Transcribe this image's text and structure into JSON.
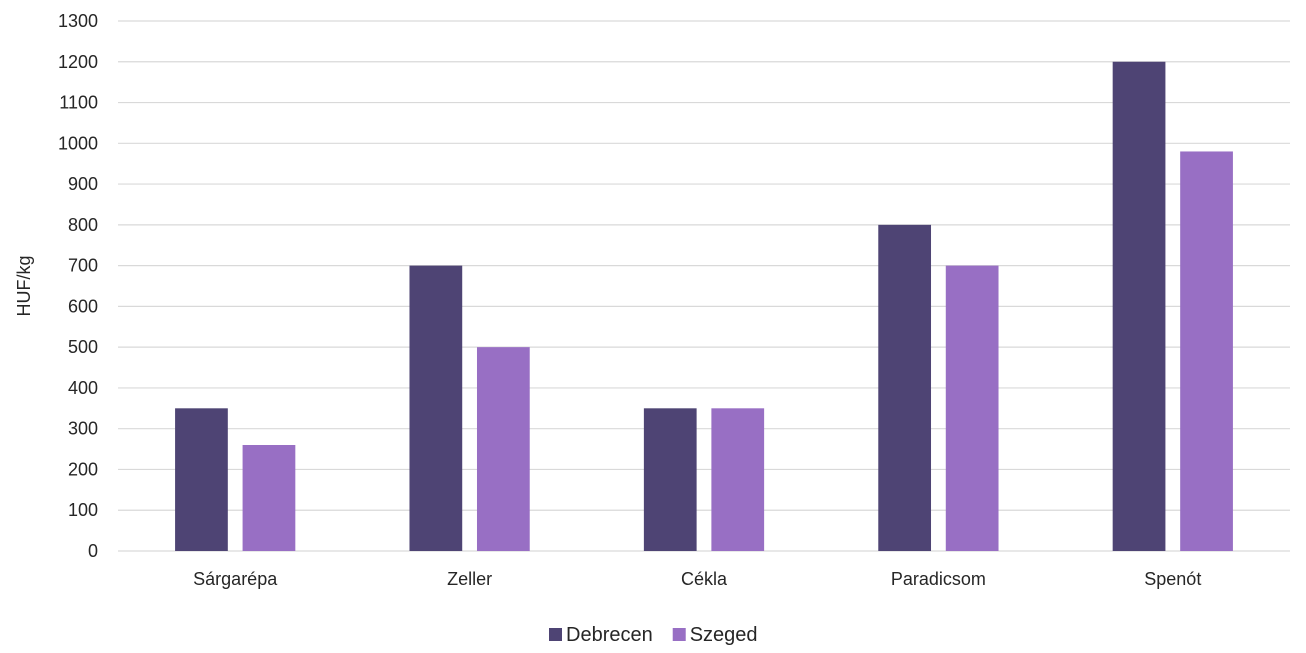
{
  "chart_data": {
    "type": "bar",
    "title": "",
    "xlabel": "",
    "ylabel": "HUF/kg",
    "ylim": [
      0,
      1300
    ],
    "yticks": [
      0,
      100,
      200,
      300,
      400,
      500,
      600,
      700,
      800,
      900,
      1000,
      1100,
      1200,
      1300
    ],
    "grid": true,
    "legend_position": "bottom",
    "categories": [
      "Sárgarépa",
      "Zeller",
      "Cékla",
      "Paradicsom",
      "Spenót"
    ],
    "series": [
      {
        "name": "Debrecen",
        "color": "#4e4474",
        "values": [
          350,
          700,
          350,
          800,
          1200
        ]
      },
      {
        "name": "Szeged",
        "color": "#986fc4",
        "values": [
          260,
          500,
          350,
          700,
          980
        ]
      }
    ]
  }
}
